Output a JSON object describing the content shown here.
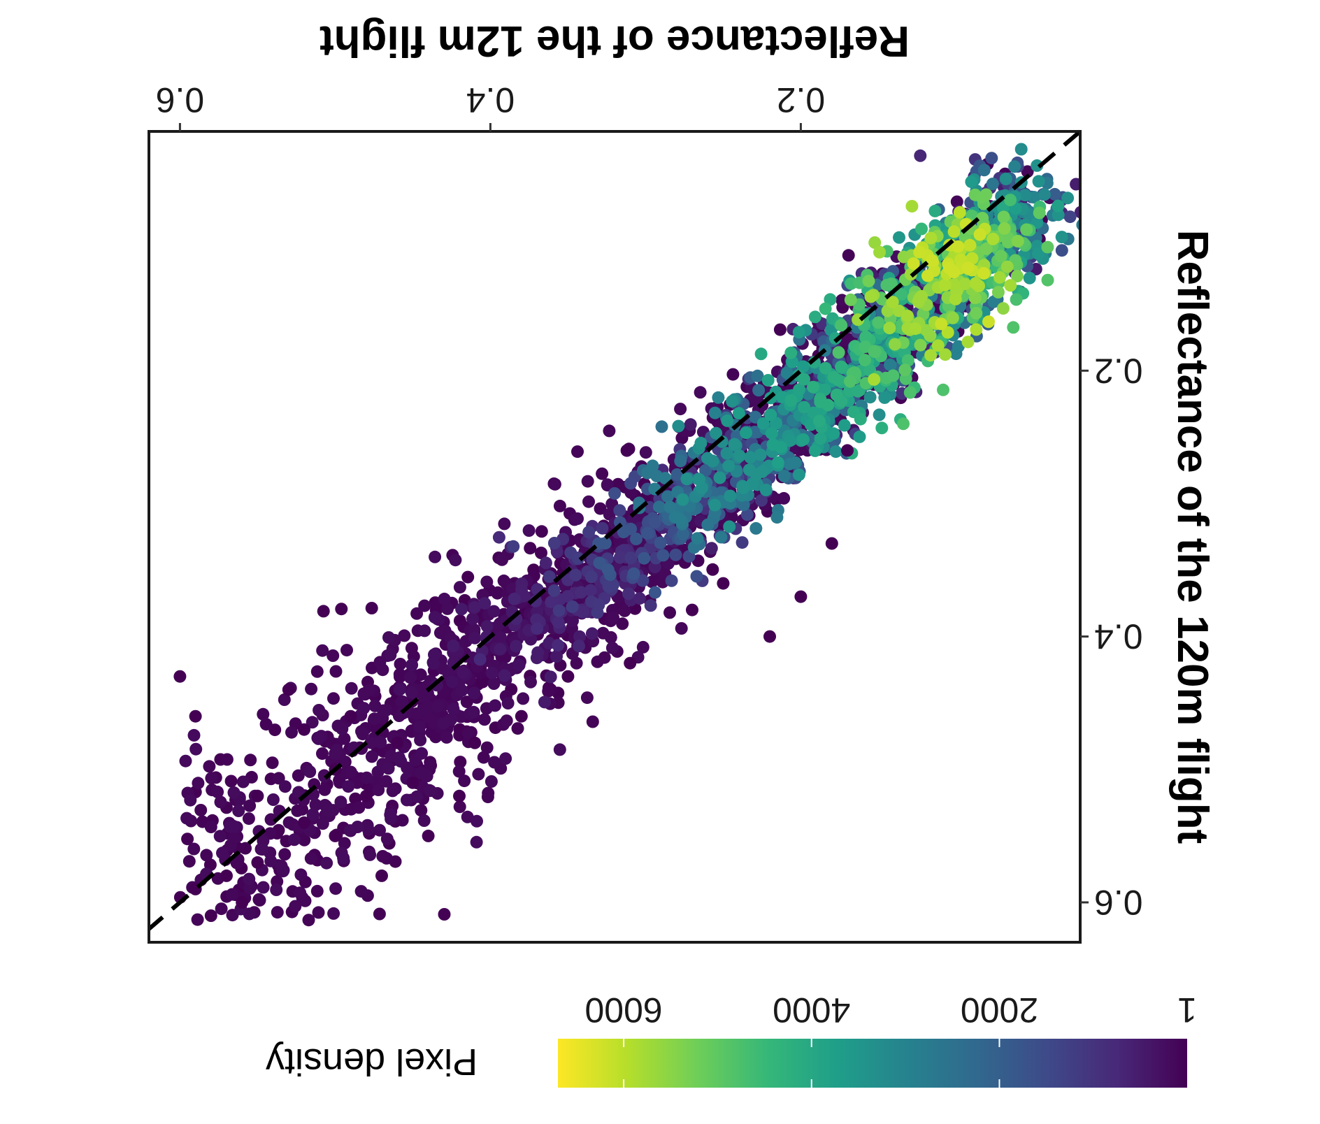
{
  "chart_data": {
    "type": "scatter",
    "title": "",
    "xlabel": "Reflectance of the 12m flight",
    "ylabel": "Reflectance of the 120m flight",
    "xlim": [
      0.02,
      0.62
    ],
    "ylim": [
      0.02,
      0.63
    ],
    "xticks": [
      {
        "value": 0.2,
        "label": "0.2"
      },
      {
        "value": 0.4,
        "label": "0.4"
      },
      {
        "value": 0.6,
        "label": "0.6"
      }
    ],
    "yticks": [
      {
        "value": 0.2,
        "label": "0.2"
      },
      {
        "value": 0.4,
        "label": "0.4"
      },
      {
        "value": 0.6,
        "label": "0.6"
      }
    ],
    "reference_line": {
      "style": "dashed",
      "color": "#000000",
      "from": [
        0.02,
        0.02
      ],
      "to": [
        0.62,
        0.62
      ]
    },
    "point_cloud": {
      "description_points": "approximate density of pixel reflectance pairs along the 1:1 line",
      "core": [
        [
          0.06,
          0.08
        ],
        [
          0.08,
          0.1
        ],
        [
          0.1,
          0.12
        ],
        [
          0.12,
          0.15
        ],
        [
          0.15,
          0.18
        ],
        [
          0.18,
          0.21
        ],
        [
          0.21,
          0.24
        ],
        [
          0.24,
          0.27
        ],
        [
          0.27,
          0.3
        ],
        [
          0.3,
          0.33
        ],
        [
          0.33,
          0.35
        ],
        [
          0.36,
          0.38
        ],
        [
          0.39,
          0.4
        ],
        [
          0.42,
          0.42
        ],
        [
          0.45,
          0.45
        ]
      ],
      "density_at_core": [
        3500,
        5200,
        6200,
        5800,
        4800,
        4200,
        3800,
        3400,
        2800,
        1800,
        1200,
        800,
        500,
        300,
        150
      ],
      "outliers": [
        [
          0.46,
          0.48
        ],
        [
          0.5,
          0.5
        ],
        [
          0.52,
          0.54
        ],
        [
          0.55,
          0.57
        ],
        [
          0.57,
          0.58
        ],
        [
          0.59,
          0.59
        ],
        [
          0.55,
          0.52
        ],
        [
          0.5,
          0.55
        ],
        [
          0.48,
          0.52
        ],
        [
          0.6,
          0.43
        ],
        [
          0.59,
          0.46
        ],
        [
          0.52,
          0.47
        ],
        [
          0.45,
          0.51
        ],
        [
          0.53,
          0.44
        ],
        [
          0.49,
          0.46
        ],
        [
          0.25,
          0.36
        ],
        [
          0.27,
          0.38
        ],
        [
          0.2,
          0.37
        ],
        [
          0.22,
          0.4
        ],
        [
          0.18,
          0.33
        ],
        [
          0.17,
          0.26
        ],
        [
          0.35,
          0.43
        ],
        [
          0.38,
          0.46
        ],
        [
          0.31,
          0.42
        ],
        [
          0.42,
          0.52
        ],
        [
          0.44,
          0.55
        ],
        [
          0.41,
          0.48
        ],
        [
          0.47,
          0.58
        ],
        [
          0.56,
          0.6
        ],
        [
          0.58,
          0.61
        ]
      ]
    },
    "colorbar": {
      "title": "Pixel density",
      "colormap": "viridis",
      "min": 1,
      "max": 6700,
      "ticks": [
        {
          "value": 1,
          "label": "1"
        },
        {
          "value": 2000,
          "label": "2000"
        },
        {
          "value": 4000,
          "label": "4000"
        },
        {
          "value": 6000,
          "label": "6000"
        }
      ],
      "stops": [
        "#440154",
        "#482878",
        "#3e4a89",
        "#31688e",
        "#26828e",
        "#1f9e89",
        "#35b779",
        "#6ece58",
        "#b5de2b",
        "#fde725"
      ]
    },
    "legend_position": "bottom",
    "grid": false
  }
}
